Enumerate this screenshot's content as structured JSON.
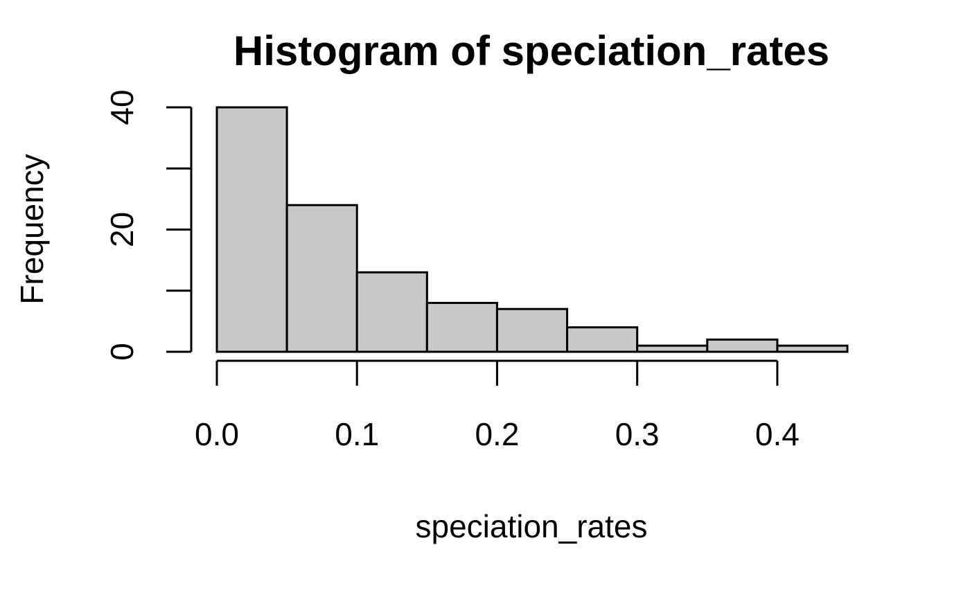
{
  "chart_data": {
    "type": "bar",
    "title": "Histogram of speciation_rates",
    "xlabel": "speciation_rates",
    "ylabel": "Frequency",
    "bin_edges": [
      0.0,
      0.05,
      0.1,
      0.15,
      0.2,
      0.25,
      0.3,
      0.35,
      0.4,
      0.45
    ],
    "values": [
      40,
      24,
      13,
      8,
      7,
      4,
      1,
      2,
      1
    ],
    "xlim": [
      0.0,
      0.45
    ],
    "ylim": [
      0,
      40
    ],
    "x_ticks": [
      0.0,
      0.1,
      0.2,
      0.3,
      0.4
    ],
    "x_tick_labels": [
      "0.0",
      "0.1",
      "0.2",
      "0.3",
      "0.4"
    ],
    "y_ticks": [
      0,
      10,
      20,
      30,
      40
    ],
    "y_tick_labels": [
      "0",
      "",
      "20",
      "",
      "40"
    ],
    "grid": false,
    "bar_fill": "#c8c8c8",
    "bar_stroke": "#000000"
  }
}
